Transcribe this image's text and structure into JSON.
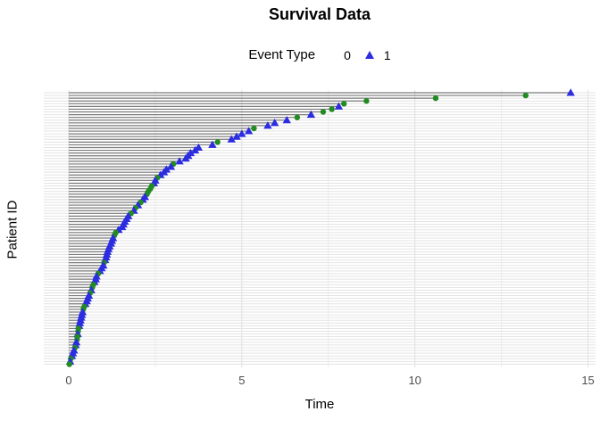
{
  "title": "Survival Data",
  "legend": {
    "label": "Event Type",
    "items": [
      {
        "label": "0",
        "marker": "circle",
        "color": "#228B22"
      },
      {
        "label": "1",
        "marker": "triangle",
        "color": "#2C2CE0"
      }
    ]
  },
  "axes": {
    "x": {
      "label": "Time",
      "ticks": [
        "0",
        "5",
        "10",
        "15"
      ]
    },
    "y": {
      "label": "Patient ID",
      "ticks": []
    }
  },
  "colors": {
    "event0": "#228B22",
    "event1": "#2C2CE0",
    "segment": "#7A7A7A",
    "grid_row": "#E3E3E3",
    "grid_major": "#DEDEDE",
    "grid_minor": "#EDEDED",
    "tick_text": "#4D4D4D",
    "background": "#FFFFFF"
  },
  "chart_data": {
    "type": "scatter",
    "title": "Survival Data",
    "xlabel": "Time",
    "ylabel": "Patient ID",
    "xlim": [
      0,
      15
    ],
    "x_ticks": [
      0,
      5,
      10,
      15
    ],
    "x_minor_ticks": [
      2.5,
      7.5,
      12.5
    ],
    "legend_title": "Event Type",
    "n_patients": 100,
    "series_note": "patients ordered top row to bottom row; each entry is [time, event_type]; event 0 = green circle, event 1 = blue triangle",
    "patients": [
      [
        14.5,
        1
      ],
      [
        13.2,
        0
      ],
      [
        10.6,
        0
      ],
      [
        8.6,
        0
      ],
      [
        7.95,
        0
      ],
      [
        7.8,
        1
      ],
      [
        7.6,
        0
      ],
      [
        7.35,
        0
      ],
      [
        7.0,
        1
      ],
      [
        6.6,
        0
      ],
      [
        6.3,
        1
      ],
      [
        5.95,
        1
      ],
      [
        5.75,
        1
      ],
      [
        5.35,
        0
      ],
      [
        5.2,
        1
      ],
      [
        5.0,
        1
      ],
      [
        4.85,
        1
      ],
      [
        4.7,
        1
      ],
      [
        4.3,
        0
      ],
      [
        4.15,
        1
      ],
      [
        3.75,
        1
      ],
      [
        3.65,
        1
      ],
      [
        3.52,
        1
      ],
      [
        3.45,
        1
      ],
      [
        3.38,
        1
      ],
      [
        3.2,
        1
      ],
      [
        3.02,
        0
      ],
      [
        2.95,
        1
      ],
      [
        2.82,
        1
      ],
      [
        2.75,
        1
      ],
      [
        2.65,
        1
      ],
      [
        2.56,
        0
      ],
      [
        2.5,
        1
      ],
      [
        2.46,
        1
      ],
      [
        2.4,
        0
      ],
      [
        2.36,
        0
      ],
      [
        2.3,
        0
      ],
      [
        2.26,
        0
      ],
      [
        2.2,
        1
      ],
      [
        2.14,
        1
      ],
      [
        2.08,
        0
      ],
      [
        2.0,
        1
      ],
      [
        1.93,
        0
      ],
      [
        1.88,
        1
      ],
      [
        1.8,
        0
      ],
      [
        1.72,
        1
      ],
      [
        1.67,
        1
      ],
      [
        1.62,
        1
      ],
      [
        1.58,
        1
      ],
      [
        1.54,
        1
      ],
      [
        1.44,
        1
      ],
      [
        1.36,
        0
      ],
      [
        1.32,
        0
      ],
      [
        1.28,
        1
      ],
      [
        1.25,
        1
      ],
      [
        1.22,
        1
      ],
      [
        1.18,
        1
      ],
      [
        1.15,
        1
      ],
      [
        1.12,
        1
      ],
      [
        1.1,
        1
      ],
      [
        1.08,
        1
      ],
      [
        1.05,
        1
      ],
      [
        1.02,
        0
      ],
      [
        1.0,
        1
      ],
      [
        0.95,
        1
      ],
      [
        0.9,
        1
      ],
      [
        0.85,
        0
      ],
      [
        0.8,
        1
      ],
      [
        0.78,
        1
      ],
      [
        0.74,
        1
      ],
      [
        0.71,
        0
      ],
      [
        0.68,
        0
      ],
      [
        0.65,
        1
      ],
      [
        0.62,
        0
      ],
      [
        0.58,
        1
      ],
      [
        0.55,
        1
      ],
      [
        0.52,
        1
      ],
      [
        0.48,
        1
      ],
      [
        0.45,
        0
      ],
      [
        0.42,
        0
      ],
      [
        0.4,
        1
      ],
      [
        0.38,
        1
      ],
      [
        0.36,
        1
      ],
      [
        0.34,
        1
      ],
      [
        0.32,
        1
      ],
      [
        0.3,
        1
      ],
      [
        0.28,
        0
      ],
      [
        0.27,
        0
      ],
      [
        0.26,
        1
      ],
      [
        0.25,
        0
      ],
      [
        0.24,
        0
      ],
      [
        0.22,
        1
      ],
      [
        0.2,
        1
      ],
      [
        0.18,
        0
      ],
      [
        0.15,
        1
      ],
      [
        0.12,
        1
      ],
      [
        0.09,
        1
      ],
      [
        0.06,
        0
      ],
      [
        0.04,
        1
      ],
      [
        0.02,
        0
      ]
    ]
  }
}
